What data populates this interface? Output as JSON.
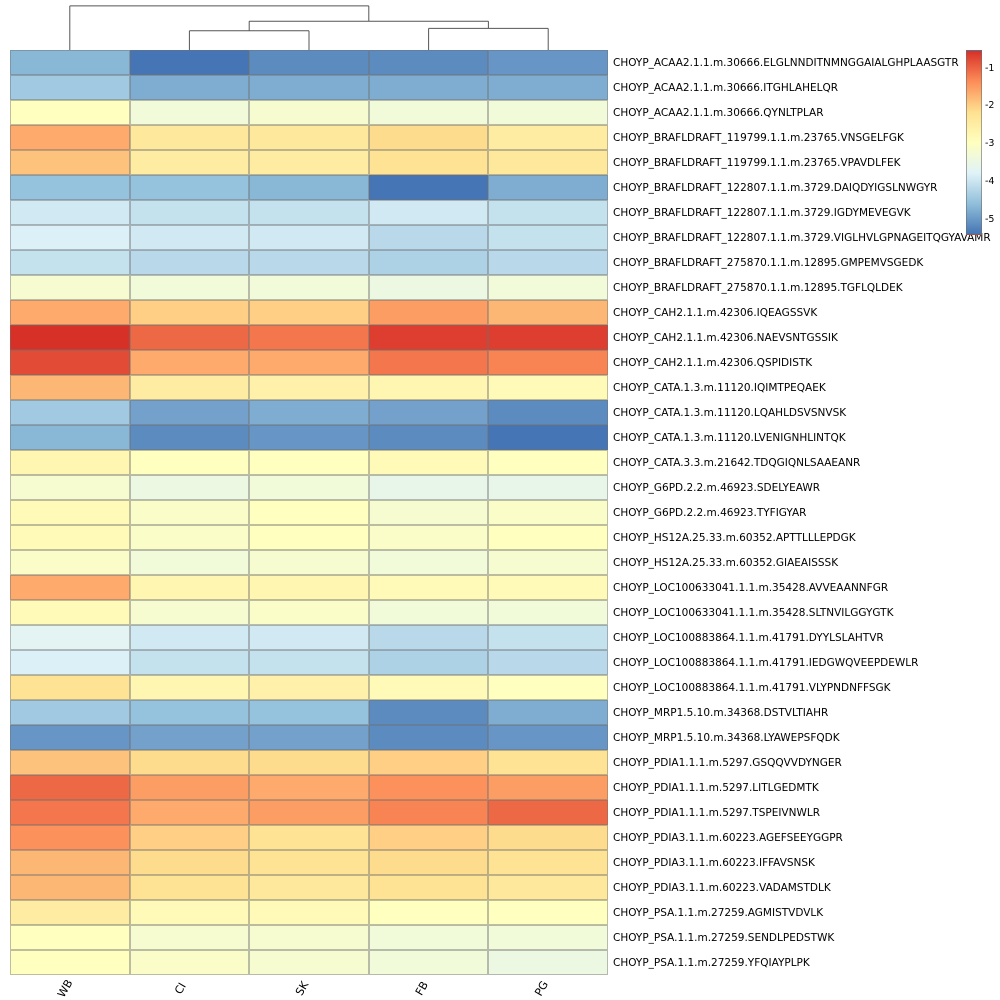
{
  "chart_data": {
    "type": "heatmap",
    "title": "",
    "columns": [
      "WB",
      "CI",
      "SK",
      "FB",
      "PG"
    ],
    "rows": [
      "CHOYP_ACAA2.1.1.m.30666.ELGLNNDITNMNGGAIALGHPLAASGTR",
      "CHOYP_ACAA2.1.1.m.30666.ITGHLAHELQR",
      "CHOYP_ACAA2.1.1.m.30666.QYNLTPLAR",
      "CHOYP_BRAFLDRAFT_119799.1.1.m.23765.VNSGELFGK",
      "CHOYP_BRAFLDRAFT_119799.1.1.m.23765.VPAVDLFEK",
      "CHOYP_BRAFLDRAFT_122807.1.1.m.3729.DAIQDYIGSLNWGYR",
      "CHOYP_BRAFLDRAFT_122807.1.1.m.3729.IGDYMEVEGVK",
      "CHOYP_BRAFLDRAFT_122807.1.1.m.3729.VIGLHVLGPNAGEITQGYAVAMR",
      "CHOYP_BRAFLDRAFT_275870.1.1.m.12895.GMPEMVSGEDK",
      "CHOYP_BRAFLDRAFT_275870.1.1.m.12895.TGFLQLDEK",
      "CHOYP_CAH2.1.1.m.42306.IQEAGSSVK",
      "CHOYP_CAH2.1.1.m.42306.NAEVSNTGSSIK",
      "CHOYP_CAH2.1.1.m.42306.QSPIDISTK",
      "CHOYP_CATA.1.3.m.11120.IQIMTPEQAEK",
      "CHOYP_CATA.1.3.m.11120.LQAHLDSVSNVSK",
      "CHOYP_CATA.1.3.m.11120.LVENIGNHLINTQK",
      "CHOYP_CATA.3.3.m.21642.TDQGIQNLSAAEANR",
      "CHOYP_G6PD.2.2.m.46923.SDELYEAWR",
      "CHOYP_G6PD.2.2.m.46923.TYFIGYAR",
      "CHOYP_HS12A.25.33.m.60352.APTTLLLEPDGK",
      "CHOYP_HS12A.25.33.m.60352.GIAEAISSSK",
      "CHOYP_LOC100633041.1.1.m.35428.AVVEAANNFGR",
      "CHOYP_LOC100633041.1.1.m.35428.SLTNVILGGYGTK",
      "CHOYP_LOC100883864.1.1.m.41791.DYYLSLAHTVR",
      "CHOYP_LOC100883864.1.1.m.41791.IEDGWQVEEPDEWLR",
      "CHOYP_LOC100883864.1.1.m.41791.VLYPNDNFFSGK",
      "CHOYP_MRP1.5.10.m.34368.DSTVLTIAHR",
      "CHOYP_MRP1.5.10.m.34368.LYAWEPSFQDK",
      "CHOYP_PDIA1.1.1.m.5297.GSQQVVDYNGER",
      "CHOYP_PDIA1.1.1.m.5297.LITLGEDMTK",
      "CHOYP_PDIA1.1.1.m.5297.TSPEIVNWLR",
      "CHOYP_PDIA3.1.1.m.60223.AGEFSEEYGGPR",
      "CHOYP_PDIA3.1.1.m.60223.IFFAVSNSK",
      "CHOYP_PDIA3.1.1.m.60223.VADAMSTDLK",
      "CHOYP_PSA.1.1.m.27259.AGMISTVDVLK",
      "CHOYP_PSA.1.1.m.27259.SENDLPEDSTWK",
      "CHOYP_PSA.1.1.m.27259.YFQIAYPLPK"
    ],
    "values": [
      [
        -4.4,
        -5.0,
        -4.8,
        -4.8,
        -4.7
      ],
      [
        -4.2,
        -4.5,
        -4.5,
        -4.5,
        -4.5
      ],
      [
        -3.0,
        -3.3,
        -3.2,
        -3.3,
        -3.3
      ],
      [
        -1.9,
        -2.5,
        -2.5,
        -2.3,
        -2.6
      ],
      [
        -2.1,
        -2.6,
        -2.6,
        -2.4,
        -2.5
      ],
      [
        -4.3,
        -4.3,
        -4.4,
        -5.0,
        -4.5
      ],
      [
        -3.8,
        -3.9,
        -3.9,
        -3.8,
        -3.9
      ],
      [
        -3.7,
        -3.8,
        -3.8,
        -4.0,
        -3.9
      ],
      [
        -3.9,
        -4.0,
        -4.0,
        -4.1,
        -4.0
      ],
      [
        -3.2,
        -3.3,
        -3.3,
        -3.4,
        -3.3
      ],
      [
        -1.9,
        -2.2,
        -2.2,
        -1.8,
        -2.0
      ],
      [
        -1.0,
        -1.4,
        -1.5,
        -1.1,
        -1.1
      ],
      [
        -1.2,
        -1.9,
        -1.9,
        -1.5,
        -1.6
      ],
      [
        -2.0,
        -2.6,
        -2.7,
        -2.8,
        -2.9
      ],
      [
        -4.2,
        -4.6,
        -4.5,
        -4.6,
        -4.8
      ],
      [
        -4.4,
        -4.8,
        -4.7,
        -4.8,
        -5.0
      ],
      [
        -2.8,
        -3.0,
        -3.0,
        -2.9,
        -3.0
      ],
      [
        -3.2,
        -3.4,
        -3.3,
        -3.5,
        -3.5
      ],
      [
        -2.9,
        -3.1,
        -3.0,
        -3.2,
        -3.1
      ],
      [
        -2.9,
        -3.1,
        -3.0,
        -3.1,
        -3.0
      ],
      [
        -3.1,
        -3.3,
        -3.2,
        -3.3,
        -3.2
      ],
      [
        -1.9,
        -2.8,
        -2.8,
        -2.9,
        -2.9
      ],
      [
        -2.9,
        -3.2,
        -3.1,
        -3.3,
        -3.3
      ],
      [
        -3.6,
        -3.8,
        -3.8,
        -4.0,
        -3.9
      ],
      [
        -3.7,
        -3.9,
        -3.9,
        -4.1,
        -4.0
      ],
      [
        -2.4,
        -2.8,
        -2.7,
        -2.9,
        -3.0
      ],
      [
        -4.2,
        -4.3,
        -4.3,
        -4.8,
        -4.5
      ],
      [
        -4.7,
        -4.6,
        -4.6,
        -4.8,
        -4.7
      ],
      [
        -2.1,
        -2.3,
        -2.3,
        -2.2,
        -2.4
      ],
      [
        -1.4,
        -1.8,
        -1.9,
        -1.7,
        -1.8
      ],
      [
        -1.5,
        -1.9,
        -1.8,
        -1.6,
        -1.4
      ],
      [
        -1.7,
        -2.2,
        -2.4,
        -2.2,
        -2.3
      ],
      [
        -2.0,
        -2.3,
        -2.4,
        -2.3,
        -2.4
      ],
      [
        -2.0,
        -2.4,
        -2.5,
        -2.4,
        -2.5
      ],
      [
        -2.6,
        -2.9,
        -2.9,
        -3.0,
        -3.0
      ],
      [
        -3.0,
        -3.2,
        -3.2,
        -3.3,
        -3.3
      ],
      [
        -3.0,
        -3.1,
        -3.2,
        -3.3,
        -3.4
      ]
    ],
    "vmin": -5,
    "vmax": -1,
    "colormap_low_to_high": [
      "#4575b4",
      "#91bfdb",
      "#e0f3f8",
      "#ffffbf",
      "#fee090",
      "#fc8d59",
      "#d73027"
    ],
    "colorbar": {
      "ticks": [
        "-1",
        "-2",
        "-3",
        "-4",
        "-5"
      ],
      "position": "top-right"
    },
    "grid": true,
    "legend_position": "right",
    "dendrogram": {
      "axis": "columns",
      "tree": {
        "h": 0.08,
        "children": [
          "WB",
          {
            "h": 0.4,
            "children": [
              {
                "h": 0.6,
                "children": [
                  "CI",
                  "SK"
                ]
              },
              {
                "h": 0.55,
                "children": [
                  "FB",
                  "PG"
                ]
              }
            ]
          }
        ]
      }
    }
  }
}
